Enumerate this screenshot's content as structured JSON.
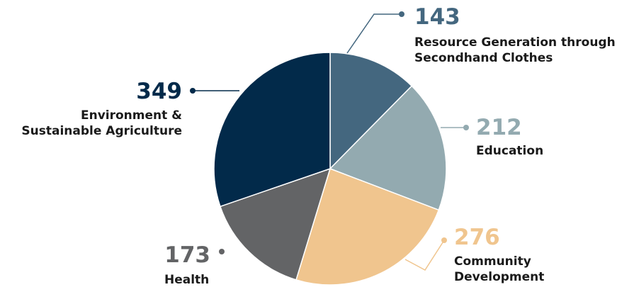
{
  "chart_data": {
    "type": "pie",
    "categories": [
      "Resource Generation through Secondhand Clothes",
      "Education",
      "Community Development",
      "Health",
      "Environment & Sustainable Agriculture"
    ],
    "values": [
      143,
      212,
      276,
      173,
      349
    ],
    "colors": [
      "#44677f",
      "#93aab0",
      "#f0c58e",
      "#636466",
      "#022a4a"
    ]
  }
}
